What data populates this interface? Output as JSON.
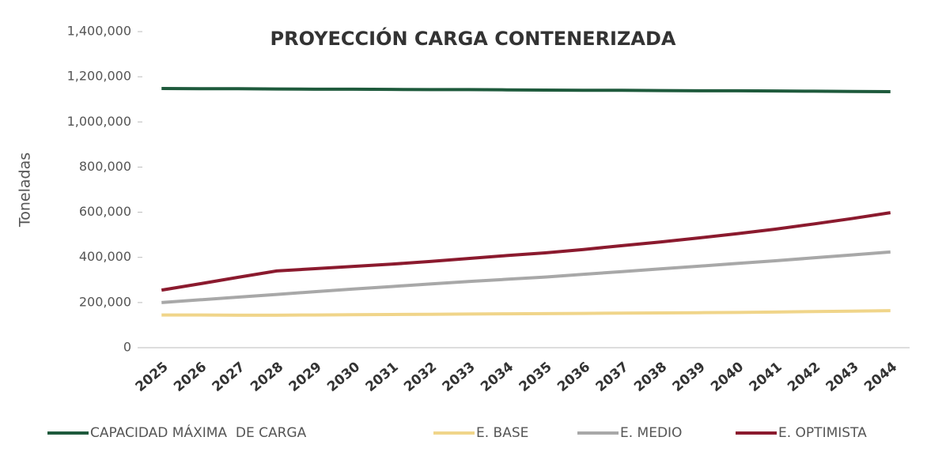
{
  "chart_data": {
    "type": "line",
    "title": "PROYECCIÓN CARGA CONTENERIZADA",
    "y_label": "Toneladas",
    "categories": [
      "2025",
      "2026",
      "2027",
      "2028",
      "2029",
      "2030",
      "2031",
      "2032",
      "2033",
      "2034",
      "2035",
      "2036",
      "2037",
      "2038",
      "2039",
      "2040",
      "2041",
      "2042",
      "2043",
      "2044"
    ],
    "series": [
      {
        "name": "CAPACIDAD MÁXIMA  DE CARGA",
        "color": "#1e5a3c",
        "values": [
          1148000,
          1147000,
          1147000,
          1146000,
          1145000,
          1145000,
          1144000,
          1143000,
          1143000,
          1142000,
          1141000,
          1140000,
          1140000,
          1139000,
          1138000,
          1138000,
          1137000,
          1136000,
          1135000,
          1134000
        ]
      },
      {
        "name": "E. BASE",
        "color": "#f0d58a",
        "values": [
          145000,
          145000,
          144000,
          144000,
          145000,
          146000,
          147000,
          148000,
          149000,
          150000,
          151000,
          152000,
          153000,
          154000,
          155000,
          156000,
          158000,
          160000,
          162000,
          164000
        ]
      },
      {
        "name": "E. MEDIO",
        "color": "#a8a8a8",
        "values": [
          200000,
          212000,
          224000,
          236000,
          248000,
          260000,
          271000,
          282000,
          293000,
          303000,
          313000,
          325000,
          337000,
          349000,
          361000,
          373000,
          385000,
          398000,
          411000,
          424000
        ]
      },
      {
        "name": "E. OPTIMISTA",
        "color": "#8b1a2e",
        "values": [
          255000,
          283000,
          312000,
          340000,
          350000,
          360000,
          370000,
          382000,
          395000,
          408000,
          420000,
          435000,
          452000,
          468000,
          486000,
          505000,
          525000,
          548000,
          572000,
          598000
        ]
      }
    ],
    "ylim": [
      0,
      1400000
    ],
    "yticks": [
      0,
      {
        "value": 200000,
        "label": "200,000"
      },
      {
        "value": 400000,
        "label": "400,000"
      },
      {
        "value": 600000,
        "label": "600,000"
      },
      {
        "value": 800000,
        "label": "800,000"
      },
      {
        "value": 1000000,
        "label": "1,000,000"
      },
      {
        "value": 1200000,
        "label": "1,200,000"
      },
      {
        "value": 1400000,
        "label": "1,400,000"
      }
    ],
    "grid": false,
    "legend": "bottom"
  }
}
